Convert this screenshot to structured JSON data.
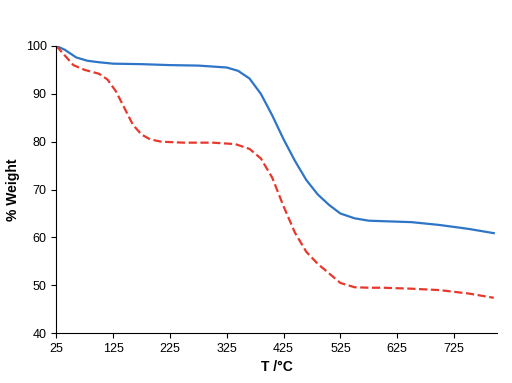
{
  "chart_data": {
    "type": "line",
    "x_label": "T /°C",
    "y_label": "% Weight",
    "series": [
      {
        "color": "#2e75c8",
        "line_style": "solid",
        "x": [
          25,
          40,
          60,
          80,
          100,
          125,
          175,
          225,
          275,
          325,
          345,
          365,
          385,
          405,
          425,
          445,
          465,
          485,
          505,
          525,
          550,
          575,
          600,
          650,
          700,
          750,
          795
        ],
        "values": [
          100,
          99.2,
          97.6,
          96.9,
          96.6,
          96.3,
          96.2,
          96.0,
          95.9,
          95.5,
          94.8,
          93.2,
          90.0,
          85.5,
          80.5,
          76.0,
          72.0,
          69.0,
          66.8,
          65.0,
          64.0,
          63.5,
          63.4,
          63.2,
          62.6,
          61.8,
          60.9
        ]
      },
      {
        "color": "#e8382c",
        "line_style": "dashed",
        "x": [
          25,
          40,
          55,
          75,
          100,
          115,
          130,
          145,
          160,
          175,
          190,
          210,
          250,
          300,
          340,
          365,
          385,
          405,
          425,
          445,
          465,
          485,
          505,
          525,
          550,
          575,
          600,
          650,
          700,
          750,
          795
        ],
        "values": [
          100,
          98.0,
          96.0,
          95.0,
          94.2,
          93.0,
          90.5,
          87.0,
          83.5,
          81.5,
          80.5,
          80.0,
          79.8,
          79.8,
          79.5,
          78.5,
          76.5,
          72.5,
          66.5,
          61.0,
          57.0,
          54.5,
          52.5,
          50.5,
          49.6,
          49.5,
          49.5,
          49.3,
          49.0,
          48.3,
          47.4
        ]
      }
    ],
    "xlim": [
      25,
      800
    ],
    "ylim": [
      40,
      100
    ],
    "xticks": [
      25,
      125,
      225,
      325,
      425,
      525,
      625,
      725
    ],
    "yticks": [
      40,
      50,
      60,
      70,
      80,
      90,
      100
    ],
    "grid": false
  }
}
